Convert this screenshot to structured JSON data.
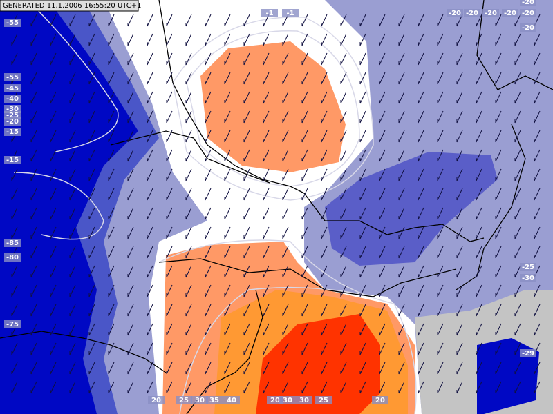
{
  "header": {
    "title": "GENERATED 11.1.2006 16:55:20 UTC+1"
  },
  "contour_labels": [
    "-55",
    "-55",
    "-45",
    "-40",
    "-30",
    "-25",
    "-20",
    "-15",
    "-15",
    "-85",
    "-80",
    "-75",
    "-1",
    "-1",
    "-20",
    "-20",
    "-20",
    "-20",
    "-20",
    "-20",
    "-20",
    "-25",
    "-30",
    "-29",
    "20",
    "25",
    "30",
    "35",
    "40",
    "20",
    "30",
    "30",
    "25",
    "20"
  ]
}
